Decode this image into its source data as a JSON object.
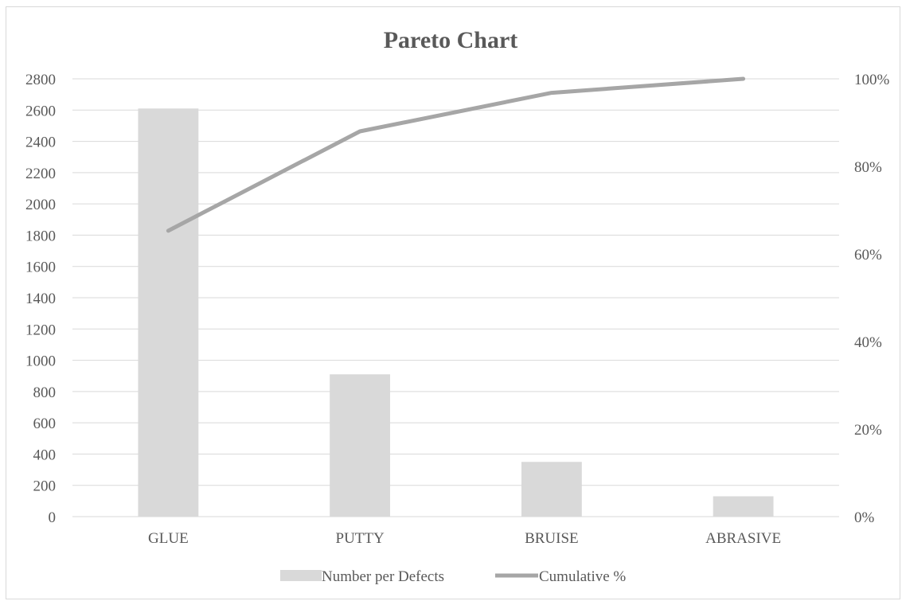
{
  "chart_data": {
    "type": "bar",
    "title": "Pareto Chart",
    "categories": [
      "GLUE",
      "PUTTY",
      "BRUISE",
      "ABRASIVE"
    ],
    "series": [
      {
        "name": "Number per Defects",
        "type": "bar",
        "axis": "primary",
        "values": [
          2610,
          910,
          350,
          130
        ],
        "color": "#d9d9d9"
      },
      {
        "name": "Cumulative %",
        "type": "line",
        "axis": "secondary",
        "values": [
          65.3,
          88.0,
          96.8,
          100.0
        ],
        "color": "#a6a6a6"
      }
    ],
    "y_axis": {
      "min": 0,
      "max": 2800,
      "ticks": [
        "0",
        "200",
        "400",
        "600",
        "800",
        "1000",
        "1200",
        "1400",
        "1600",
        "1800",
        "2000",
        "2200",
        "2400",
        "2600",
        "2800"
      ]
    },
    "y2_axis": {
      "min": 0,
      "max": 100,
      "ticks": [
        "0%",
        "20%",
        "40%",
        "60%",
        "80%",
        "100%"
      ]
    },
    "grid": true,
    "legend": "bottom"
  }
}
